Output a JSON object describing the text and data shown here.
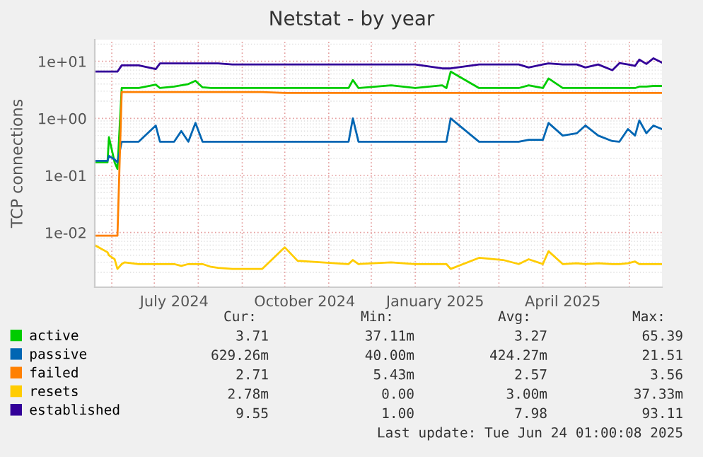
{
  "chart_data": {
    "type": "line",
    "title": "Netstat - by year",
    "ylabel": "TCP connections",
    "x": [
      "2024-05-20",
      "2024-05-29",
      "2024-05-30",
      "2024-06-03",
      "2024-06-05",
      "2024-06-08",
      "2024-06-10",
      "2024-06-20",
      "2024-07-02",
      "2024-07-05",
      "2024-07-15",
      "2024-07-20",
      "2024-07-25",
      "2024-07-30",
      "2024-08-04",
      "2024-08-10",
      "2024-08-15",
      "2024-08-25",
      "2024-09-15",
      "2024-10-01",
      "2024-10-10",
      "2024-11-15",
      "2024-11-18",
      "2024-11-22",
      "2024-12-15",
      "2025-01-01",
      "2025-01-20",
      "2025-01-23",
      "2025-01-26",
      "2025-02-15",
      "2025-03-04",
      "2025-03-15",
      "2025-03-22",
      "2025-04-01",
      "2025-04-05",
      "2025-04-15",
      "2025-04-25",
      "2025-05-01",
      "2025-05-10",
      "2025-05-20",
      "2025-05-25",
      "2025-05-31",
      "2025-06-05",
      "2025-06-08",
      "2025-06-13",
      "2025-06-18",
      "2025-06-24"
    ],
    "series": [
      {
        "name": "active",
        "color": "#00cc00",
        "values": [
          0.17,
          0.17,
          0.47,
          0.17,
          0.13,
          3.4,
          3.4,
          3.4,
          3.9,
          3.4,
          3.6,
          3.8,
          4.0,
          4.55,
          3.5,
          3.4,
          3.4,
          3.4,
          3.4,
          3.4,
          3.4,
          3.4,
          4.7,
          3.4,
          3.8,
          3.4,
          3.8,
          3.4,
          6.6,
          3.4,
          3.4,
          3.4,
          3.8,
          3.4,
          5.0,
          3.4,
          3.4,
          3.4,
          3.4,
          3.4,
          3.4,
          3.4,
          3.4,
          3.6,
          3.6,
          3.7,
          3.7
        ]
      },
      {
        "name": "passive",
        "color": "#0066b3",
        "values": [
          0.18,
          0.18,
          0.22,
          0.19,
          0.17,
          0.39,
          0.39,
          0.39,
          0.75,
          0.39,
          0.39,
          0.6,
          0.39,
          0.83,
          0.39,
          0.39,
          0.39,
          0.39,
          0.39,
          0.39,
          0.39,
          0.39,
          1.0,
          0.39,
          0.39,
          0.39,
          0.39,
          0.39,
          1.0,
          0.39,
          0.39,
          0.39,
          0.42,
          0.42,
          0.83,
          0.5,
          0.55,
          0.75,
          0.5,
          0.4,
          0.39,
          0.65,
          0.5,
          0.92,
          0.55,
          0.75,
          0.65
        ]
      },
      {
        "name": "failed",
        "color": "#ff8000",
        "values": [
          0.0088,
          0.0088,
          0.0088,
          0.0088,
          0.0088,
          2.9,
          2.9,
          2.9,
          2.9,
          2.9,
          2.9,
          2.9,
          2.9,
          2.9,
          2.9,
          2.9,
          2.9,
          2.9,
          2.9,
          2.8,
          2.8,
          2.8,
          2.8,
          2.8,
          2.8,
          2.8,
          2.8,
          2.8,
          2.8,
          2.8,
          2.8,
          2.8,
          2.8,
          2.8,
          2.8,
          2.8,
          2.8,
          2.8,
          2.8,
          2.8,
          2.8,
          2.8,
          2.8,
          2.8,
          2.8,
          2.8,
          2.8
        ]
      },
      {
        "name": "resets",
        "color": "#ffcc00",
        "values": [
          0.006,
          0.0045,
          0.004,
          0.0034,
          0.0023,
          0.0028,
          0.003,
          0.0028,
          0.0028,
          0.0028,
          0.0028,
          0.0026,
          0.0028,
          0.0028,
          0.0028,
          0.0025,
          0.0024,
          0.0023,
          0.0023,
          0.0055,
          0.0032,
          0.0028,
          0.0033,
          0.0028,
          0.003,
          0.0028,
          0.0028,
          0.0028,
          0.0023,
          0.0036,
          0.0033,
          0.0028,
          0.0034,
          0.0028,
          0.0047,
          0.0028,
          0.0029,
          0.0028,
          0.0029,
          0.0028,
          0.0028,
          0.0029,
          0.0031,
          0.0028,
          0.0028,
          0.0028,
          0.0028
        ]
      },
      {
        "name": "established",
        "color": "#330099",
        "values": [
          6.6,
          6.6,
          6.6,
          6.6,
          6.6,
          8.5,
          8.5,
          8.5,
          7.3,
          9.2,
          9.2,
          9.2,
          9.2,
          9.2,
          9.2,
          9.2,
          9.2,
          8.8,
          8.8,
          8.8,
          8.8,
          8.8,
          8.8,
          8.8,
          8.8,
          8.8,
          7.5,
          7.5,
          7.5,
          8.8,
          8.8,
          8.8,
          7.8,
          8.8,
          9.2,
          8.8,
          8.8,
          7.8,
          8.8,
          7.0,
          9.3,
          8.8,
          8.3,
          10.7,
          9.0,
          11.3,
          9.5
        ]
      }
    ],
    "xlim": [
      "2024-05-20",
      "2025-06-24"
    ],
    "xticks": [
      {
        "value": "2024-06-01",
        "label": null
      },
      {
        "value": "2024-07-01",
        "label": null
      },
      {
        "value": "2024-07-15",
        "label": "July 2024"
      },
      {
        "value": "2024-08-01",
        "label": null
      },
      {
        "value": "2024-09-01",
        "label": null
      },
      {
        "value": "2024-10-01",
        "label": null
      },
      {
        "value": "2024-10-15",
        "label": "October 2024"
      },
      {
        "value": "2024-11-01",
        "label": null
      },
      {
        "value": "2024-12-01",
        "label": null
      },
      {
        "value": "2025-01-01",
        "label": null
      },
      {
        "value": "2025-01-15",
        "label": "January 2025"
      },
      {
        "value": "2025-02-01",
        "label": null
      },
      {
        "value": "2025-03-01",
        "label": null
      },
      {
        "value": "2025-04-01",
        "label": null
      },
      {
        "value": "2025-04-15",
        "label": "April 2025"
      },
      {
        "value": "2025-05-01",
        "label": null
      },
      {
        "value": "2025-06-01",
        "label": null
      }
    ],
    "log": true,
    "ylim": [
      0.0011,
      24
    ],
    "yticks": [
      {
        "value": 0.01,
        "label": "1e-02"
      },
      {
        "value": 0.1,
        "label": "1e-01"
      },
      {
        "value": 1,
        "label": "1e+00"
      },
      {
        "value": 10,
        "label": "1e+01"
      }
    ],
    "grid": true,
    "legend": "bottom",
    "annotations": [
      "Cur:",
      "Min:",
      "Avg:",
      "Max:",
      "3.71",
      "37.11m",
      "3.27",
      "65.39",
      "629.26m",
      "40.00m",
      "424.27m",
      "21.51",
      "2.71",
      "5.43m",
      "2.57",
      "3.56",
      "2.78m",
      "0.00",
      "3.00m",
      "37.33m",
      "9.55",
      "1.00",
      "7.98",
      "93.11",
      "Last update: Tue Jun 24 01:00:08 2025"
    ]
  }
}
